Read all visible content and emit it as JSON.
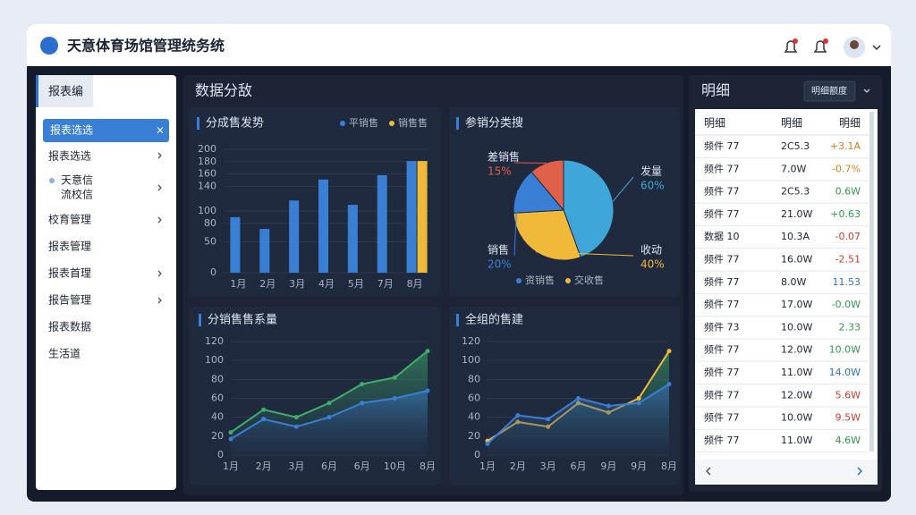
{
  "header": {
    "title": "天意体育场馆管理统务统"
  },
  "sidebar": {
    "tab": "报表编",
    "items": [
      "报表选选",
      "报表选选",
      "天意信",
      "流校信",
      "校育管理",
      "报表管理",
      "报表首理",
      "报告管理",
      "报表数据",
      "生活道"
    ]
  },
  "main": {
    "title": "数据分敌"
  },
  "chart_data": [
    {
      "type": "bar",
      "title": "分成售发势",
      "categories": [
        "1月",
        "2月",
        "3月",
        "4月",
        "5月",
        "7月",
        "8月"
      ],
      "series": [
        {
          "name": "平销售",
          "color": "#3a7fd6",
          "values": [
            90,
            71,
            117,
            151,
            110,
            158,
            181
          ]
        },
        {
          "name": "销售售",
          "color": "#f0b93a",
          "values": [
            null,
            null,
            null,
            null,
            null,
            null,
            181
          ]
        }
      ],
      "ylim": [
        0,
        200
      ],
      "yticks": [
        0,
        50,
        80,
        100,
        140,
        160,
        180,
        200
      ],
      "grid": true
    },
    {
      "type": "pie",
      "title": "参销分类搜",
      "categories": [
        "发量",
        "收动",
        "销售",
        "差销售"
      ],
      "values": [
        60,
        40,
        20,
        15
      ],
      "value_labels": [
        "60%",
        "40%",
        "20%",
        "15%"
      ],
      "colors": [
        "#3ea6d8",
        "#f0b93a",
        "#3a7fd6",
        "#e0604a"
      ],
      "legend": [
        {
          "name": "资销售",
          "color": "#3a7fd6"
        },
        {
          "name": "交收售",
          "color": "#f0b93a"
        }
      ]
    },
    {
      "type": "line",
      "title": "分销售售系量",
      "categories": [
        "1月",
        "2月",
        "3月",
        "6月",
        "6月",
        "10月",
        "8月"
      ],
      "series": [
        {
          "color": "#3fae6a",
          "values": [
            24,
            48,
            40,
            55,
            75,
            82,
            110
          ]
        },
        {
          "color": "#3a7fd6",
          "values": [
            17,
            38,
            30,
            40,
            55,
            60,
            68
          ]
        }
      ],
      "ylim": [
        0,
        120
      ],
      "yticks": [
        0,
        20,
        40,
        60,
        80,
        100,
        120
      ],
      "grid": true
    },
    {
      "type": "line",
      "title": "全组的售建",
      "categories": [
        "1月",
        "2月",
        "3月",
        "6月",
        "9月",
        "9月",
        "8月"
      ],
      "series": [
        {
          "color": "#f0b93a",
          "values": [
            15,
            35,
            30,
            55,
            45,
            60,
            110
          ]
        },
        {
          "color": "#3a7fd6",
          "values": [
            12,
            42,
            38,
            60,
            52,
            55,
            75
          ]
        }
      ],
      "ylim": [
        0,
        120
      ],
      "yticks": [
        0,
        20,
        40,
        60,
        80,
        100,
        120
      ],
      "grid": true
    }
  ],
  "detail": {
    "title": "明细",
    "button": "明细额度",
    "headers": [
      "明细",
      "明细",
      "明细"
    ],
    "rows": [
      {
        "cells": [
          "频件 77",
          "2C5.3",
          "+3.1A"
        ],
        "color": "#e07b1a"
      },
      {
        "cells": [
          "频件 77",
          "7.0W",
          "-0.7%"
        ],
        "color": "#e07b1a"
      },
      {
        "cells": [
          "频件 77",
          "2C5.3",
          "0.6W"
        ],
        "color": "#2f9a4a"
      },
      {
        "cells": [
          "频件 77",
          "21.0W",
          "+0.63"
        ],
        "color": "#2f9a4a"
      },
      {
        "cells": [
          "数据 10",
          "10.3A",
          "-0.07"
        ],
        "color": "#d23a2a"
      },
      {
        "cells": [
          "频件 77",
          "16.0W",
          "-2.51"
        ],
        "color": "#d23a2a"
      },
      {
        "cells": [
          "频件 77",
          "8.0W",
          "11.53"
        ],
        "color": "#2a6fd0"
      },
      {
        "cells": [
          "频件 77",
          "17.0W",
          "-0.0W"
        ],
        "color": "#2f9a4a"
      },
      {
        "cells": [
          "频件 73",
          "10.0W",
          "2.33"
        ],
        "color": "#2f9a4a"
      },
      {
        "cells": [
          "频件 77",
          "12.0W",
          "10.0W"
        ],
        "color": "#2f9a4a"
      },
      {
        "cells": [
          "频件 77",
          "11.0W",
          "14.0W"
        ],
        "color": "#2a6fd0"
      },
      {
        "cells": [
          "频件 77",
          "12.0W",
          "5.6W"
        ],
        "color": "#d23a2a"
      },
      {
        "cells": [
          "频件 77",
          "10.0W",
          "9.5W"
        ],
        "color": "#d23a2a"
      },
      {
        "cells": [
          "频件 77",
          "11.0W",
          "4.6W"
        ],
        "color": "#2f9a4a"
      }
    ]
  }
}
